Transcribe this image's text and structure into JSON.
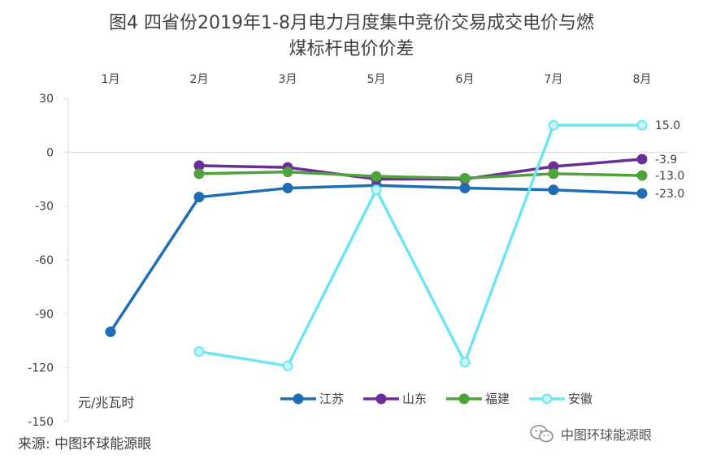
{
  "title": {
    "line1": "图4  四省份2019年1-8月电力月度集中竞价交易成交电价与燃",
    "line2": "煤标杆电价价差"
  },
  "unit_label": "元/兆瓦时",
  "source": "来源:  中图环球能源眼",
  "watermark": "中图环球能源眼",
  "chart_data": {
    "type": "line",
    "categories": [
      "1月",
      "2月",
      "3月",
      "5月",
      "6月",
      "7月",
      "8月"
    ],
    "ylim": [
      -150,
      30
    ],
    "yticks": [
      30,
      0,
      -30,
      -60,
      -90,
      -120,
      -150
    ],
    "ylabel": "元/兆瓦时",
    "grid": false,
    "legend_position": "bottom-center",
    "series": [
      {
        "name": "江苏",
        "color": "#1f6eb5",
        "values": [
          -100,
          -25,
          -20,
          -18.5,
          -20,
          -21,
          -23
        ],
        "end_label": "-23.0"
      },
      {
        "name": "山东",
        "color": "#6a2d9a",
        "values": [
          null,
          -7.5,
          -8.5,
          -15,
          -15,
          -8,
          -3.9
        ],
        "end_label": "-3.9"
      },
      {
        "name": "福建",
        "color": "#4ea33b",
        "values": [
          null,
          -12,
          -11,
          -13.5,
          -14.5,
          -12,
          -13
        ],
        "end_label": "-13.0"
      },
      {
        "name": "安徽",
        "color": "#6ee6f2",
        "values": [
          null,
          -111,
          -119,
          -21,
          -117,
          15,
          15
        ],
        "end_label": "15.0"
      }
    ]
  }
}
